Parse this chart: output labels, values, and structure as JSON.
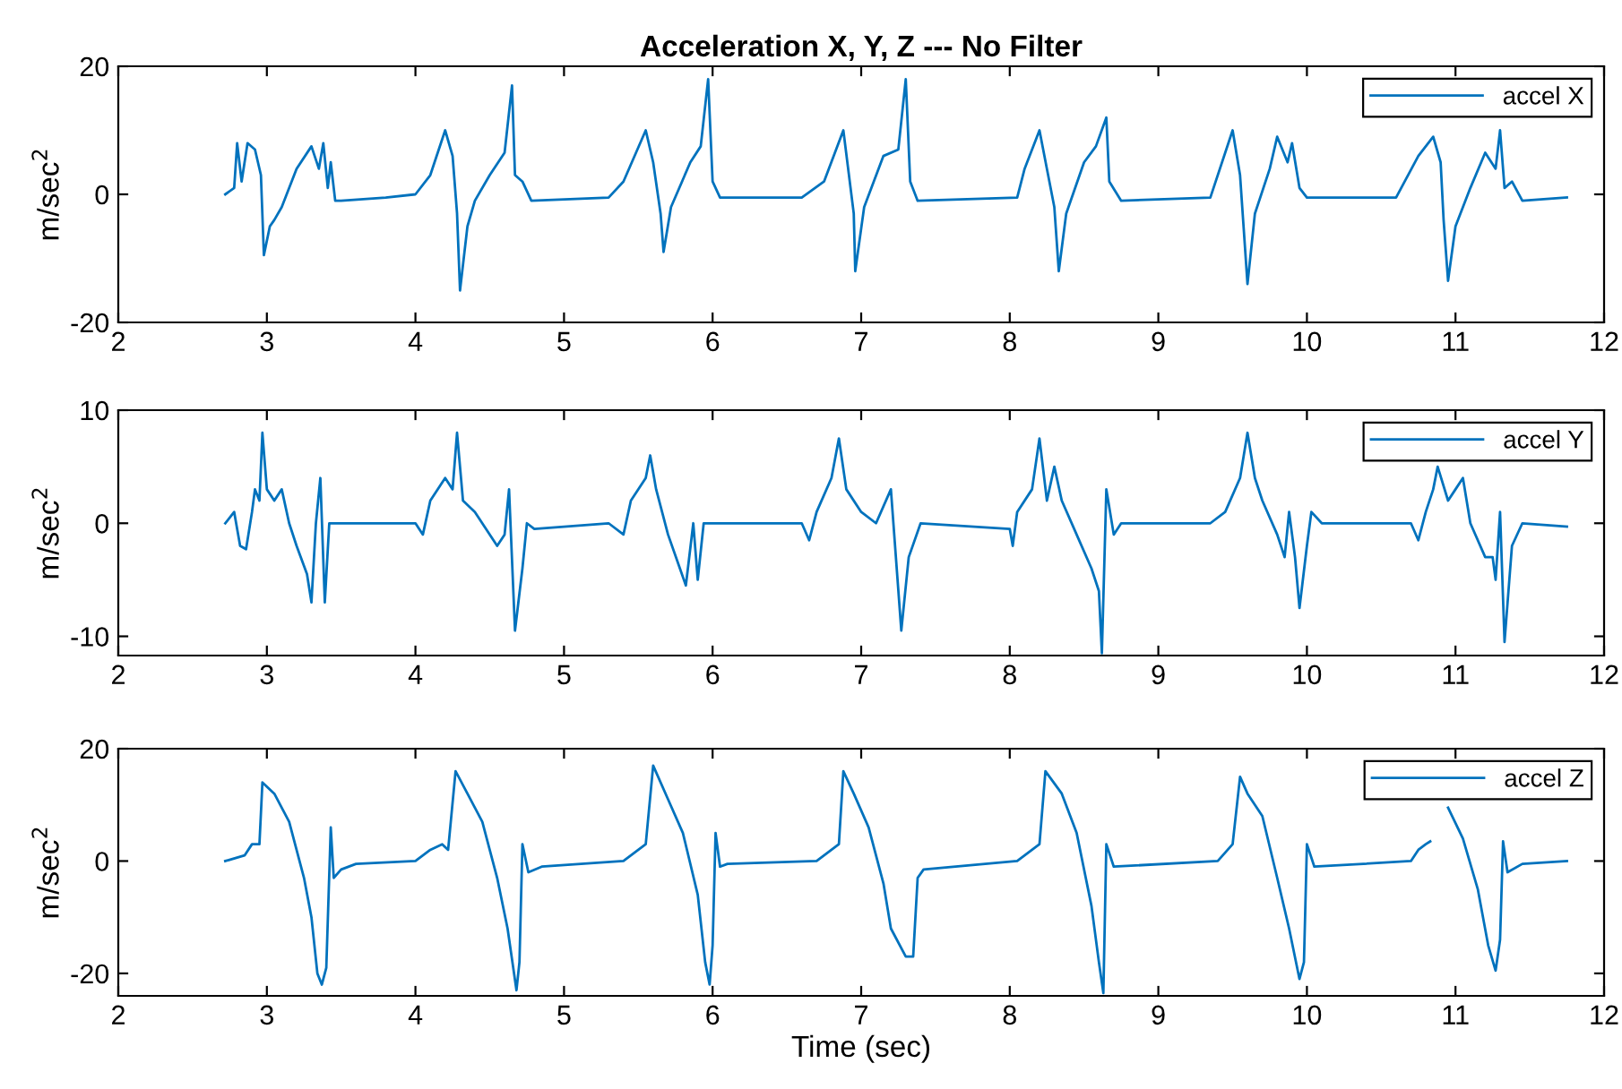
{
  "chart_data": [
    {
      "type": "line",
      "title": "Acceleration X, Y, Z --- No Filter",
      "ylabel": "m/sec$^{2}$",
      "xlim": [
        2,
        12
      ],
      "xticks": [
        2,
        3,
        4,
        5,
        6,
        7,
        8,
        9,
        10,
        11,
        12
      ],
      "ylim": [
        -20,
        20
      ],
      "yticks": [
        -20,
        0,
        20
      ],
      "grid": false,
      "legend": "top right",
      "marker": "none",
      "line_style": "solid",
      "series": [
        {
          "name": "accel X",
          "color": "#0072bd",
          "x": [
            2.72,
            2.78,
            2.8,
            2.83,
            2.87,
            2.92,
            2.96,
            2.98,
            3.02,
            3.05,
            3.1,
            3.2,
            3.3,
            3.35,
            3.38,
            3.41,
            3.43,
            3.46,
            3.5,
            3.8,
            4.0,
            4.1,
            4.2,
            4.25,
            4.28,
            4.3,
            4.35,
            4.4,
            4.5,
            4.6,
            4.65,
            4.67,
            4.72,
            4.78,
            5.3,
            5.4,
            5.55,
            5.6,
            5.65,
            5.67,
            5.72,
            5.85,
            5.92,
            5.97,
            6.0,
            6.05,
            6.6,
            6.75,
            6.88,
            6.95,
            6.96,
            7.02,
            7.15,
            7.25,
            7.3,
            7.33,
            7.38,
            8.05,
            8.1,
            8.2,
            8.25,
            8.3,
            8.33,
            8.38,
            8.5,
            8.58,
            8.65,
            8.67,
            8.75,
            9.35,
            9.5,
            9.55,
            9.6,
            9.65,
            9.75,
            9.8,
            9.87,
            9.9,
            9.95,
            10.0,
            10.6,
            10.75,
            10.85,
            10.9,
            10.92,
            10.95,
            11.0,
            11.1,
            11.2,
            11.27,
            11.3,
            11.33,
            11.38,
            11.45,
            11.75
          ],
          "values": [
            0,
            1,
            8,
            2,
            8,
            7,
            3,
            -9.5,
            -5,
            -4,
            -2,
            4,
            7.5,
            4,
            8,
            1,
            5,
            -1,
            -1,
            -0.5,
            0,
            3,
            10,
            6,
            -3,
            -15,
            -5,
            -1,
            3,
            6.5,
            17,
            3,
            2,
            -1,
            -0.5,
            2,
            10,
            5,
            -3,
            -9,
            -2,
            5,
            7.5,
            18,
            2,
            -0.5,
            -0.5,
            2,
            10,
            -3,
            -12,
            -2,
            6,
            7,
            18,
            2,
            -1,
            -0.5,
            4,
            10,
            4,
            -2,
            -12,
            -3,
            5,
            7.5,
            12,
            2,
            -1,
            -0.5,
            10,
            3,
            -14,
            -3,
            4,
            9,
            5,
            8,
            1,
            -0.5,
            -0.5,
            6,
            9,
            5,
            -4,
            -13.5,
            -5,
            1,
            6.5,
            4,
            10,
            1,
            2,
            -1,
            -0.5
          ]
        }
      ]
    },
    {
      "type": "line",
      "ylabel": "m/sec$^{2}$",
      "xlim": [
        2,
        12
      ],
      "xticks": [
        2,
        3,
        4,
        5,
        6,
        7,
        8,
        9,
        10,
        11,
        12
      ],
      "ylim": [
        -11.7,
        10
      ],
      "yticks": [
        -10,
        0,
        10
      ],
      "grid": false,
      "legend": "top right",
      "marker": "none",
      "line_style": "solid",
      "series": [
        {
          "name": "accel Y",
          "color": "#0072bd",
          "x": [
            2.72,
            2.78,
            2.82,
            2.86,
            2.9,
            2.92,
            2.95,
            2.97,
            3.0,
            3.05,
            3.1,
            3.15,
            3.2,
            3.27,
            3.3,
            3.33,
            3.36,
            3.39,
            3.42,
            3.5,
            4.0,
            4.05,
            4.1,
            4.2,
            4.25,
            4.28,
            4.32,
            4.4,
            4.55,
            4.6,
            4.63,
            4.67,
            4.72,
            4.75,
            4.8,
            5.3,
            5.4,
            5.45,
            5.55,
            5.58,
            5.62,
            5.7,
            5.78,
            5.82,
            5.87,
            5.9,
            5.94,
            6.0,
            6.6,
            6.65,
            6.7,
            6.8,
            6.85,
            6.9,
            7.0,
            7.1,
            7.2,
            7.27,
            7.32,
            7.4,
            8.0,
            8.02,
            8.05,
            8.15,
            8.2,
            8.25,
            8.3,
            8.35,
            8.45,
            8.55,
            8.6,
            8.62,
            8.65,
            8.7,
            8.75,
            9.35,
            9.45,
            9.55,
            9.6,
            9.65,
            9.7,
            9.8,
            9.85,
            9.88,
            9.92,
            9.95,
            10.0,
            10.03,
            10.1,
            10.7,
            10.75,
            10.8,
            10.85,
            10.88,
            10.95,
            11.0,
            11.05,
            11.1,
            11.2,
            11.25,
            11.27,
            11.3,
            11.33,
            11.38,
            11.45,
            11.75
          ],
          "values": [
            0,
            1,
            -2,
            -2.3,
            1,
            3,
            2,
            8,
            3,
            2,
            3,
            0,
            -2,
            -4.5,
            -7,
            0,
            4,
            -7,
            0,
            0,
            0,
            -1,
            2,
            4,
            3,
            8,
            2,
            1,
            -2,
            -1,
            3,
            -9.5,
            -4,
            0,
            -0.5,
            0,
            -1,
            2,
            4,
            6,
            3,
            -1,
            -4,
            -5.5,
            0,
            -5,
            0,
            0,
            0,
            -1.5,
            1,
            4,
            7.5,
            3,
            1,
            0,
            3,
            -9.5,
            -3,
            0,
            -0.5,
            -2,
            1,
            3,
            7.5,
            2,
            5,
            2,
            -1,
            -4,
            -6,
            -11.5,
            3,
            -1,
            0,
            0,
            1,
            4,
            8,
            4,
            2,
            -1,
            -3,
            1,
            -3,
            -7.5,
            -2,
            1,
            0,
            0,
            -1.5,
            1,
            3,
            5,
            2,
            3,
            4,
            0,
            -3,
            -3,
            -5,
            1,
            -10.5,
            -2,
            0,
            -0.3
          ]
        }
      ]
    },
    {
      "type": "line",
      "ylabel": "m/sec$^{2}$",
      "xlabel": "Time (sec)",
      "xlim": [
        2,
        12
      ],
      "xticks": [
        2,
        3,
        4,
        5,
        6,
        7,
        8,
        9,
        10,
        11,
        12
      ],
      "ylim": [
        -24,
        20
      ],
      "yticks": [
        -20,
        0,
        20
      ],
      "grid": false,
      "legend": "top right",
      "marker": "none",
      "line_style": "solid",
      "series": [
        {
          "name": "accel Z",
          "color": "#0072bd",
          "x": [
            2.72,
            2.85,
            2.9,
            2.95,
            2.97,
            3.05,
            3.15,
            3.25,
            3.3,
            3.34,
            3.37,
            3.4,
            3.43,
            3.45,
            3.5,
            3.6,
            4.0,
            4.1,
            4.18,
            4.22,
            4.27,
            4.35,
            4.45,
            4.55,
            4.62,
            4.68,
            4.7,
            4.72,
            4.76,
            4.85,
            5.4,
            5.5,
            5.55,
            5.6,
            5.7,
            5.8,
            5.9,
            5.95,
            5.98,
            6.0,
            6.02,
            6.05,
            6.1,
            6.7,
            6.8,
            6.85,
            6.88,
            6.95,
            7.05,
            7.15,
            7.2,
            7.3,
            7.35,
            7.38,
            7.42,
            8.05,
            8.15,
            8.2,
            8.24,
            8.35,
            8.45,
            8.55,
            8.6,
            8.63,
            8.65,
            8.7,
            9.4,
            9.5,
            9.55,
            9.6,
            9.7,
            9.8,
            9.88,
            9.95,
            9.98,
            10.0,
            10.05,
            10.7,
            10.75,
            10.8,
            10.83,
            10.86,
            10.95,
            11.05,
            11.15,
            11.22,
            11.27,
            11.3,
            11.32,
            11.35,
            11.45,
            11.75
          ],
          "values": [
            0,
            1,
            3,
            3,
            14,
            12,
            7,
            -3,
            -10,
            -20,
            -22,
            -19,
            6,
            -3,
            -1.5,
            -0.5,
            0,
            2,
            3,
            2,
            16,
            12,
            7,
            -3,
            -12,
            -23,
            -18,
            3,
            -2,
            -1,
            0,
            2,
            3,
            17,
            11,
            5,
            -6,
            -18,
            -22,
            -15,
            5,
            -1,
            -0.5,
            0,
            2,
            3,
            16,
            12,
            6,
            -4,
            -12,
            -17,
            -17,
            -3,
            -1.5,
            0,
            2,
            3,
            16,
            12,
            5,
            -8,
            -18,
            -23.5,
            3,
            -1,
            0,
            3,
            15,
            12,
            8,
            -3,
            -12,
            -21,
            -18,
            3,
            -1,
            0,
            2,
            3,
            3.5,
            null,
            9.5,
            4,
            -5,
            -15,
            -19.5,
            -14,
            3.5,
            -2,
            -0.5,
            0
          ]
        }
      ]
    }
  ]
}
